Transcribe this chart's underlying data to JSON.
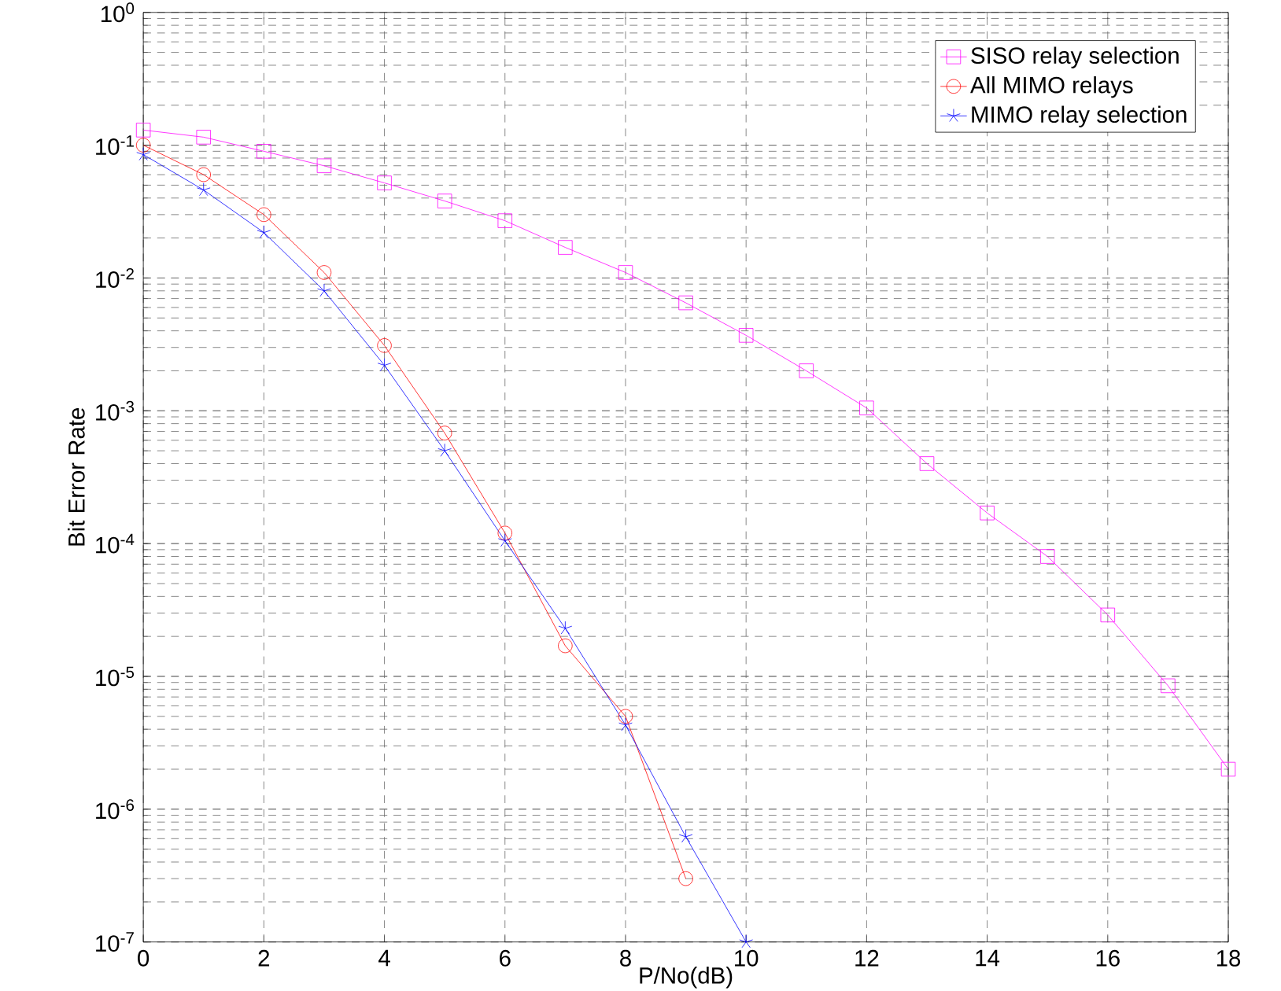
{
  "chart_data": {
    "type": "line",
    "xlabel": "P/No(dB)",
    "ylabel": "Bit Error Rate",
    "log": "y",
    "grid": true,
    "legend": "top right",
    "xlim": [
      0,
      18
    ],
    "xticks": [
      0,
      2,
      4,
      6,
      8,
      10,
      12,
      14,
      16,
      18
    ],
    "ylim": [
      1e-07,
      1
    ],
    "yticks": [
      {
        "value": 1e-07,
        "label": "10$^{-7}$"
      },
      {
        "value": 1e-06,
        "label": "10$^{-6}$"
      },
      {
        "value": 1e-05,
        "label": "10$^{-5}$"
      },
      {
        "value": 0.0001,
        "label": "10$^{-4}$"
      },
      {
        "value": 0.001,
        "label": "10$^{-3}$"
      },
      {
        "value": 0.01,
        "label": "10$^{-2}$"
      },
      {
        "value": 0.1,
        "label": "10$^{-1}$"
      },
      {
        "value": 1,
        "label": "10$^{0}$"
      }
    ],
    "series": [
      {
        "name": "SISO relay selection",
        "color": "#ff00ff",
        "marker": "square",
        "x": [
          0,
          1,
          2,
          3,
          4,
          5,
          6,
          7,
          8,
          9,
          10,
          11,
          12,
          13,
          14,
          15,
          16,
          17,
          18
        ],
        "values": [
          0.13,
          0.115,
          0.09,
          0.07,
          0.052,
          0.038,
          0.027,
          0.017,
          0.011,
          0.0065,
          0.0037,
          0.002,
          0.00105,
          0.0004,
          0.00017,
          8e-05,
          2.9e-05,
          8.5e-06,
          2e-06
        ]
      },
      {
        "name": "All MIMO relays",
        "color": "#ff0000",
        "marker": "circle",
        "x": [
          0,
          1,
          2,
          3,
          4,
          5,
          6,
          7,
          8,
          9
        ],
        "values": [
          0.1,
          0.06,
          0.03,
          0.011,
          0.0031,
          0.00068,
          0.00012,
          1.7e-05,
          5e-06,
          3e-07
        ]
      },
      {
        "name": "MIMO relay selection",
        "color": "#0000ff",
        "marker": "cross",
        "x": [
          0,
          1,
          2,
          3,
          4,
          5,
          6,
          7,
          8,
          9,
          10
        ],
        "values": [
          0.085,
          0.046,
          0.022,
          0.008,
          0.0022,
          0.0005,
          0.000105,
          2.3e-05,
          4.3e-06,
          6.2e-07,
          1e-07
        ]
      }
    ]
  }
}
